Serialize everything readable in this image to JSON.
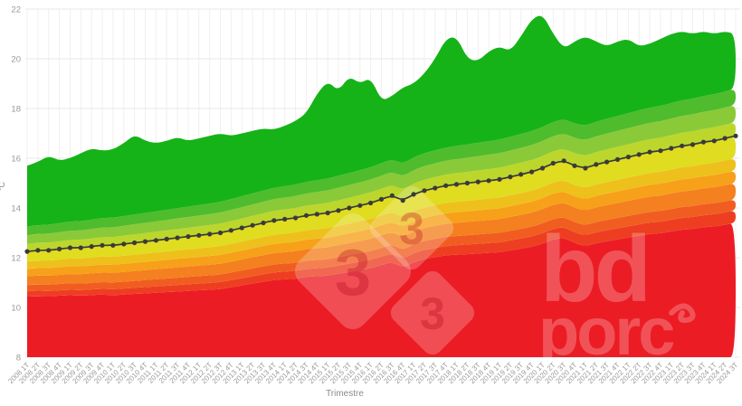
{
  "chart": {
    "y_axis": {
      "title": "°C",
      "ticks": [
        22,
        20,
        18,
        16,
        14,
        12,
        10,
        8
      ],
      "min": 8,
      "max": 22
    },
    "x_axis": {
      "title": "Trimestre"
    },
    "watermarks": {
      "logo_333": {
        "digit": "3"
      },
      "bdporc": {
        "top": "bd",
        "bottom": "porc"
      }
    }
  },
  "chart_data": {
    "type": "area",
    "title": "",
    "xlabel": "Trimestre",
    "ylabel": "°C",
    "ylim": [
      8,
      22
    ],
    "baseline": 8,
    "grid": true,
    "categories": [
      "2008 1T",
      "2008 2T",
      "2008 3T",
      "2008 4T",
      "2009 1T",
      "2009 2T",
      "2009 3T",
      "2009 4T",
      "2010 1T",
      "2010 2T",
      "2010 3T",
      "2010 4T",
      "2011 1T",
      "2011 2T",
      "2011 3T",
      "2011 4T",
      "2012 1T",
      "2012 2T",
      "2012 3T",
      "2012 4T",
      "2013 1T",
      "2013 2T",
      "2013 3T",
      "2013 4T",
      "2014 1T",
      "2014 2T",
      "2014 3T",
      "2014 4T",
      "2015 1T",
      "2015 2T",
      "2015 3T",
      "2015 4T",
      "2016 1T",
      "2016 2T",
      "2016 3T",
      "2016 4T",
      "2017 1T",
      "2017 2T",
      "2017 3T",
      "2017 4T",
      "2018 1T",
      "2018 2T",
      "2018 3T",
      "2018 4T",
      "2019 1T",
      "2019 2T",
      "2019 3T",
      "2019 4T",
      "2020 1T",
      "2020 2T",
      "2020 3T",
      "2020 4T",
      "2021 1T",
      "2021 2T",
      "2021 3T",
      "2021 4T",
      "2022 1T",
      "2022 2T",
      "2022 3T",
      "2022 4T",
      "2023 1T",
      "2023 2T",
      "2023 3T",
      "2023 4T",
      "2024 1T",
      "2024 2T",
      "2024 3T"
    ],
    "series": [
      {
        "name": "median",
        "type": "line",
        "color": "#3a3a3a",
        "values": [
          12.25,
          12.3,
          12.3,
          12.35,
          12.4,
          12.4,
          12.45,
          12.5,
          12.5,
          12.55,
          12.6,
          12.65,
          12.7,
          12.75,
          12.8,
          12.85,
          12.9,
          12.95,
          13.0,
          13.1,
          13.2,
          13.3,
          13.4,
          13.5,
          13.55,
          13.6,
          13.7,
          13.75,
          13.8,
          13.9,
          14.0,
          14.1,
          14.2,
          14.35,
          14.5,
          14.3,
          14.55,
          14.7,
          14.8,
          14.9,
          14.95,
          15.0,
          15.05,
          15.1,
          15.15,
          15.25,
          15.35,
          15.45,
          15.6,
          15.8,
          15.9,
          15.7,
          15.6,
          15.75,
          15.85,
          15.95,
          16.05,
          16.15,
          16.25,
          16.3,
          16.4,
          16.5,
          16.55,
          16.65,
          16.7,
          16.8,
          16.9
        ]
      },
      {
        "name": "max",
        "type": "area-top",
        "color": "#15b318",
        "values": [
          15.7,
          15.85,
          16.1,
          15.9,
          16.0,
          16.2,
          16.4,
          16.3,
          16.35,
          16.6,
          16.95,
          16.7,
          16.6,
          16.7,
          16.85,
          16.7,
          16.8,
          16.9,
          17.0,
          16.9,
          17.0,
          17.1,
          17.2,
          17.15,
          17.3,
          17.5,
          17.8,
          18.6,
          19.1,
          18.7,
          19.3,
          19.0,
          19.25,
          18.3,
          18.5,
          18.85,
          19.0,
          19.4,
          20.0,
          20.8,
          20.9,
          20.0,
          19.9,
          20.3,
          20.5,
          20.3,
          20.9,
          21.6,
          21.8,
          21.0,
          20.4,
          20.7,
          20.9,
          20.7,
          20.5,
          20.7,
          20.8,
          20.5,
          20.6,
          20.8,
          21.0,
          21.1,
          21.0,
          21.1,
          21.0,
          21.1,
          21.0
        ]
      }
    ],
    "percentile_boundaries": [
      {
        "name": "b1",
        "offset_start": -1.8,
        "offset_end": -3.5
      },
      {
        "name": "b2",
        "offset_start": -1.6,
        "offset_end": -3.0
      },
      {
        "name": "b3",
        "offset_start": -1.35,
        "offset_end": -2.55
      },
      {
        "name": "b4",
        "offset_start": -1.0,
        "offset_end": -1.9
      },
      {
        "name": "b5",
        "offset_start": -0.7,
        "offset_end": -1.4
      },
      {
        "name": "b6",
        "offset_start": -0.4,
        "offset_end": -0.9
      },
      {
        "name": "median",
        "offset_start": 0,
        "offset_end": 0
      },
      {
        "name": "b7",
        "offset_start": 0.3,
        "offset_end": 0.55
      },
      {
        "name": "b8",
        "offset_start": 0.65,
        "offset_end": 1.25
      },
      {
        "name": "b9",
        "offset_start": 1.0,
        "offset_end": 1.9
      }
    ],
    "band_colors": [
      "#ec1c24",
      "#ee3e22",
      "#f15d21",
      "#f4801f",
      "#f7a019",
      "#eec01c",
      "#e0dc20",
      "#bdd62c",
      "#8aca38",
      "#4fbc2d",
      "#15b318"
    ],
    "legend": "off"
  },
  "style_colors": {
    "grid_vertical": "#f0f0f0",
    "grid_horizontal": "#e8e8e8",
    "tick_label": "#999999",
    "axis_title": "#8a8a8a",
    "median_line": "#3a3a3a"
  }
}
